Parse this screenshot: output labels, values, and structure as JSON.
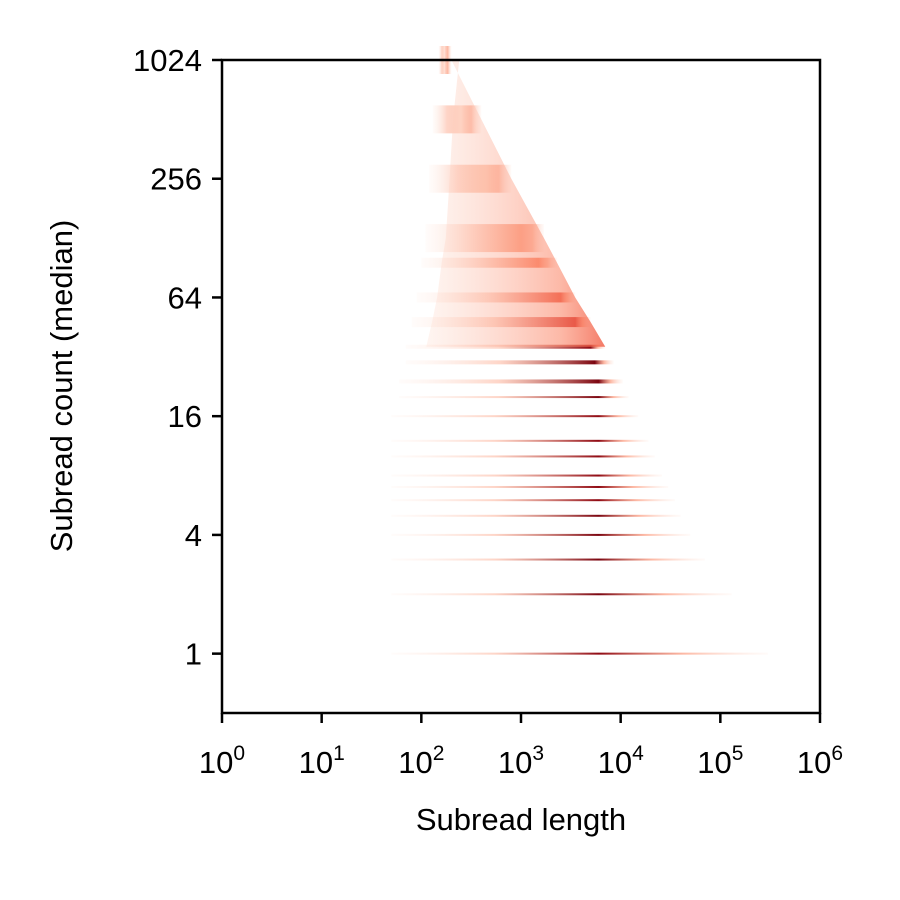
{
  "chart_data": {
    "type": "heatmap",
    "title": "",
    "xlabel": "Subread length",
    "ylabel": "Subread count (median)",
    "x_scale": "log10",
    "y_scale": "log2",
    "xlim": [
      1,
      1000000
    ],
    "ylim": [
      0.5,
      1024
    ],
    "x_ticks": [
      {
        "value": 1,
        "base": "10",
        "exp": "0"
      },
      {
        "value": 10,
        "base": "10",
        "exp": "1"
      },
      {
        "value": 100,
        "base": "10",
        "exp": "2"
      },
      {
        "value": 1000,
        "base": "10",
        "exp": "3"
      },
      {
        "value": 10000,
        "base": "10",
        "exp": "4"
      },
      {
        "value": 100000,
        "base": "10",
        "exp": "5"
      },
      {
        "value": 1000000,
        "base": "10",
        "exp": "6"
      }
    ],
    "y_ticks": [
      {
        "value": 1,
        "label": "1"
      },
      {
        "value": 4,
        "label": "4"
      },
      {
        "value": 16,
        "label": "16"
      },
      {
        "value": 64,
        "label": "64"
      },
      {
        "value": 256,
        "label": "256"
      },
      {
        "value": 1024,
        "label": "1024"
      }
    ],
    "grid": false,
    "legend": "none",
    "colormap": [
      "#fff5f0",
      "#fcbba1",
      "#fb6a4a",
      "#cb181d",
      "#67000d"
    ],
    "density_rows": [
      {
        "count": 1,
        "min_length": 50,
        "max_length": 300000,
        "peak_length": 6000,
        "intensity": 0.9
      },
      {
        "count": 2,
        "min_length": 50,
        "max_length": 130000,
        "peak_length": 6000,
        "intensity": 0.95
      },
      {
        "count": 3,
        "min_length": 50,
        "max_length": 70000,
        "peak_length": 6000,
        "intensity": 0.95
      },
      {
        "count": 4,
        "min_length": 50,
        "max_length": 50000,
        "peak_length": 6000,
        "intensity": 0.95
      },
      {
        "count": 5,
        "min_length": 50,
        "max_length": 40000,
        "peak_length": 6000,
        "intensity": 0.95
      },
      {
        "count": 6,
        "min_length": 50,
        "max_length": 35000,
        "peak_length": 6000,
        "intensity": 0.9
      },
      {
        "count": 7,
        "min_length": 50,
        "max_length": 30000,
        "peak_length": 6000,
        "intensity": 0.9
      },
      {
        "count": 8,
        "min_length": 50,
        "max_length": 26000,
        "peak_length": 6000,
        "intensity": 0.9
      },
      {
        "count": 10,
        "min_length": 50,
        "max_length": 22000,
        "peak_length": 6000,
        "intensity": 0.9
      },
      {
        "count": 12,
        "min_length": 50,
        "max_length": 19000,
        "peak_length": 6000,
        "intensity": 0.9
      },
      {
        "count": 16,
        "min_length": 50,
        "max_length": 15000,
        "peak_length": 6000,
        "intensity": 0.9
      },
      {
        "count": 20,
        "min_length": 60,
        "max_length": 12000,
        "peak_length": 6000,
        "intensity": 0.95
      },
      {
        "count": 24,
        "min_length": 60,
        "max_length": 10500,
        "peak_length": 6000,
        "intensity": 0.95
      },
      {
        "count": 30,
        "min_length": 70,
        "max_length": 8500,
        "peak_length": 5500,
        "intensity": 0.95
      },
      {
        "count": 36,
        "min_length": 70,
        "max_length": 7000,
        "peak_length": 5000,
        "intensity": 0.9
      },
      {
        "count": 48,
        "min_length": 80,
        "max_length": 5000,
        "peak_length": 3500,
        "intensity": 0.75
      },
      {
        "count": 64,
        "min_length": 90,
        "max_length": 3500,
        "peak_length": 2500,
        "intensity": 0.6
      },
      {
        "count": 96,
        "min_length": 100,
        "max_length": 2300,
        "peak_length": 1500,
        "intensity": 0.45
      },
      {
        "count": 128,
        "min_length": 110,
        "max_length": 1700,
        "peak_length": 1000,
        "intensity": 0.35
      },
      {
        "count": 256,
        "min_length": 120,
        "max_length": 800,
        "peak_length": 450,
        "intensity": 0.2
      },
      {
        "count": 512,
        "min_length": 130,
        "max_length": 400,
        "peak_length": 250,
        "intensity": 0.12
      },
      {
        "count": 1024,
        "min_length": 150,
        "max_length": 200,
        "peak_length": 170,
        "intensity": 0.08
      }
    ]
  }
}
